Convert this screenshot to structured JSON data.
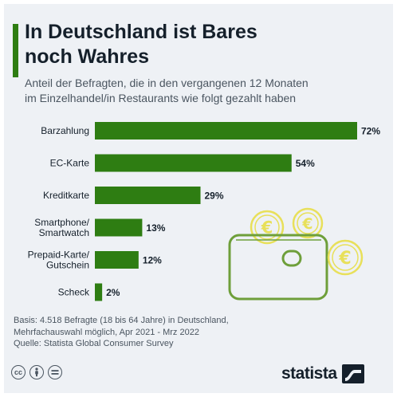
{
  "header": {
    "title_line1": "In Deutschland ist Bares",
    "title_line2": "noch Wahres",
    "subtitle_line1": "Anteil der Befragten, die in den vergangenen 12 Monaten",
    "subtitle_line2": "im Einzelhandel/in Restaurants wie folgt gezahlt haben"
  },
  "chart_data": {
    "type": "bar",
    "orientation": "horizontal",
    "categories": [
      [
        "Barzahlung"
      ],
      [
        "EC-Karte"
      ],
      [
        "Kreditkarte"
      ],
      [
        "Smartphone/",
        "Smartwatch"
      ],
      [
        "Prepaid-Karte/",
        "Gutschein"
      ],
      [
        "Scheck"
      ]
    ],
    "values": [
      72,
      54,
      29,
      13,
      12,
      2
    ],
    "value_labels": [
      "72%",
      "54%",
      "29%",
      "13%",
      "12%",
      "2%"
    ],
    "unit": "%",
    "xlim": [
      0,
      72
    ],
    "grid": false,
    "bar_color": "#2e7d12"
  },
  "footer": {
    "note_line1": "Basis: 4.518 Befragte (18 bis 64 Jahre) in Deutschland,",
    "note_line2": "Mehrfachauswahl möglich, Apr 2021 - Mrz 2022",
    "source": "Quelle: Statista Global Consumer Survey",
    "brand": "statista",
    "license_icons": [
      "cc",
      "by",
      "nd"
    ]
  },
  "illustration": {
    "icon": "wallet-with-euro-coins-icon",
    "coin_symbol": "€",
    "coin_color": "#e8e05a",
    "wallet_color": "#6e9f3a"
  }
}
